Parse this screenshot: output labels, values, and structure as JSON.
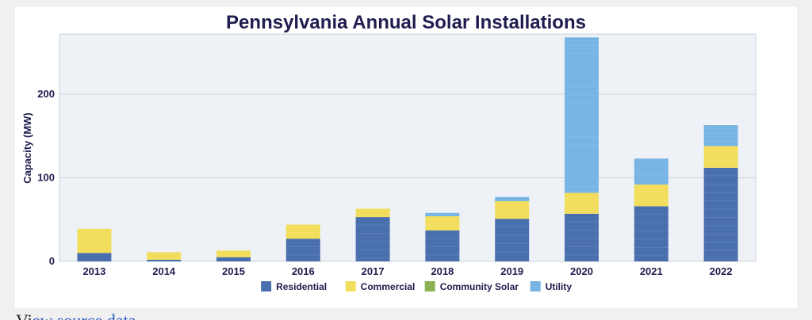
{
  "chart_data": {
    "type": "bar",
    "stacked": true,
    "title": "Pennsylvania Annual Solar Installations",
    "xlabel": "",
    "ylabel": "Capacity (MW)",
    "ylim": [
      0,
      272
    ],
    "yticks": [
      0,
      100,
      200
    ],
    "grid": true,
    "legend_position": "bottom",
    "categories": [
      "2013",
      "2014",
      "2015",
      "2016",
      "2017",
      "2018",
      "2019",
      "2020",
      "2021",
      "2022"
    ],
    "series": [
      {
        "name": "Residential",
        "color": "#4a6fae",
        "values": [
          10,
          2,
          5,
          27,
          53,
          37,
          51,
          57,
          66,
          112
        ]
      },
      {
        "name": "Commercial",
        "color": "#f2de5c",
        "values": [
          29,
          9,
          8,
          17,
          10,
          17,
          21,
          25,
          26,
          26
        ]
      },
      {
        "name": "Community Solar",
        "color": "#8db052",
        "values": [
          0,
          0,
          0,
          0,
          0,
          0,
          0,
          0,
          0,
          0
        ]
      },
      {
        "name": "Utility",
        "color": "#78b4e4",
        "values": [
          0,
          0,
          0,
          0,
          0,
          4,
          5,
          186,
          31,
          25
        ]
      }
    ]
  },
  "footer": {
    "text_prefix": "Vi",
    "link_text": "ew  source  data"
  }
}
